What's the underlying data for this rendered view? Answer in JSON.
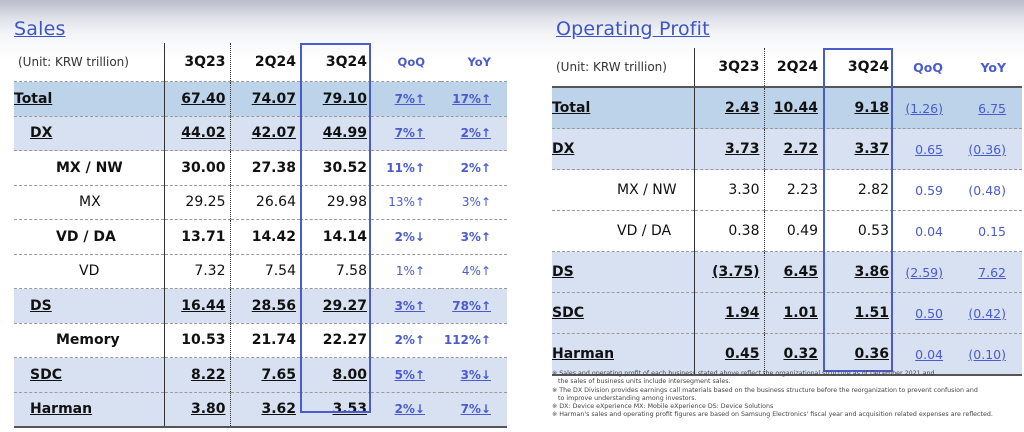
{
  "sales": {
    "title": "Sales",
    "unit": "(Unit: KRW trillion)",
    "columns": [
      "3Q23",
      "2Q24",
      "3Q24",
      "QoQ",
      "YoY"
    ],
    "rows": [
      {
        "label": "Total",
        "level": 0,
        "values": [
          "67.40",
          "74.07",
          "79.10"
        ],
        "qoq": "7%↑",
        "yoy": "17%↑"
      },
      {
        "label": "DX",
        "level": 1,
        "values": [
          "44.02",
          "42.07",
          "44.99"
        ],
        "qoq": "7%↑",
        "yoy": "2%↑"
      },
      {
        "label": "MX / NW",
        "level": 2,
        "values": [
          "30.00",
          "27.38",
          "30.52"
        ],
        "qoq": "11%↑",
        "yoy": "2%↑"
      },
      {
        "label": "MX",
        "level": 3,
        "values": [
          "29.25",
          "26.64",
          "29.98"
        ],
        "qoq": "13%↑",
        "yoy": "3%↑"
      },
      {
        "label": "VD / DA",
        "level": 2,
        "values": [
          "13.71",
          "14.42",
          "14.14"
        ],
        "qoq": "2%↓",
        "yoy": "3%↑"
      },
      {
        "label": "VD",
        "level": 3,
        "values": [
          "7.32",
          "7.54",
          "7.58"
        ],
        "qoq": "1%↑",
        "yoy": "4%↑"
      },
      {
        "label": "DS",
        "level": 1,
        "values": [
          "16.44",
          "28.56",
          "29.27"
        ],
        "qoq": "3%↑",
        "yoy": "78%↑"
      },
      {
        "label": "Memory",
        "level": 2,
        "values": [
          "10.53",
          "21.74",
          "22.27"
        ],
        "qoq": "2%↑",
        "yoy": "112%↑"
      },
      {
        "label": "SDC",
        "level": 1,
        "values": [
          "8.22",
          "7.65",
          "8.00"
        ],
        "qoq": "5%↑",
        "yoy": "3%↓"
      },
      {
        "label": "Harman",
        "level": 1,
        "values": [
          "3.80",
          "3.62",
          "3.53"
        ],
        "qoq": "2%↓",
        "yoy": "7%↓"
      }
    ]
  },
  "operating_profit": {
    "title": "Operating Profit",
    "unit": "(Unit: KRW trillion)",
    "columns": [
      "3Q23",
      "2Q24",
      "3Q24",
      "QoQ",
      "YoY"
    ],
    "rows": [
      {
        "label": "Total",
        "level": 0,
        "values": [
          "2.43",
          "10.44",
          "9.18"
        ],
        "qoq": "(1.26)",
        "yoy": "6.75"
      },
      {
        "label": "DX",
        "level": 1,
        "values": [
          "3.73",
          "2.72",
          "3.37"
        ],
        "qoq": "0.65",
        "yoy": "(0.36)"
      },
      {
        "label": "MX / NW",
        "level": 2,
        "values": [
          "3.30",
          "2.23",
          "2.82"
        ],
        "qoq": "0.59",
        "yoy": "(0.48)"
      },
      {
        "label": "VD / DA",
        "level": 2,
        "values": [
          "0.38",
          "0.49",
          "0.53"
        ],
        "qoq": "0.04",
        "yoy": "0.15"
      },
      {
        "label": "DS",
        "level": 1,
        "values": [
          "(3.75)",
          "6.45",
          "3.86"
        ],
        "qoq": "(2.59)",
        "yoy": "7.62"
      },
      {
        "label": "SDC",
        "level": 1,
        "values": [
          "1.94",
          "1.01",
          "1.51"
        ],
        "qoq": "0.50",
        "yoy": "(0.42)"
      },
      {
        "label": "Harman",
        "level": 1,
        "values": [
          "0.45",
          "0.32",
          "0.36"
        ],
        "qoq": "0.04",
        "yoy": "(0.10)"
      }
    ]
  },
  "footnotes": [
    {
      "first": "※ Sales and operating profit of each business stated above reflect the organizational structure  as of December 2021 and",
      "second": "the sales of business units include intersegment sales."
    },
    {
      "first": "※ The DX Division provides earnings call materials based on the business structure before the reorganization to prevent confusion and",
      "second": "to improve understanding among investors."
    },
    {
      "first": "※ DX: Device eXperience MX: Mobile eXperience DS: Device Solutions",
      "second": ""
    },
    {
      "first": "※ Harman's sales and operating profit figures are based on Samsung Electronics' fiscal year and acquisition related expenses  are reflected.",
      "second": ""
    }
  ],
  "colors": {
    "accent": "#4a5bd0",
    "total_row": "#bcd3ea",
    "division_row": "#d8e1f2",
    "title": "#3b55c9"
  }
}
